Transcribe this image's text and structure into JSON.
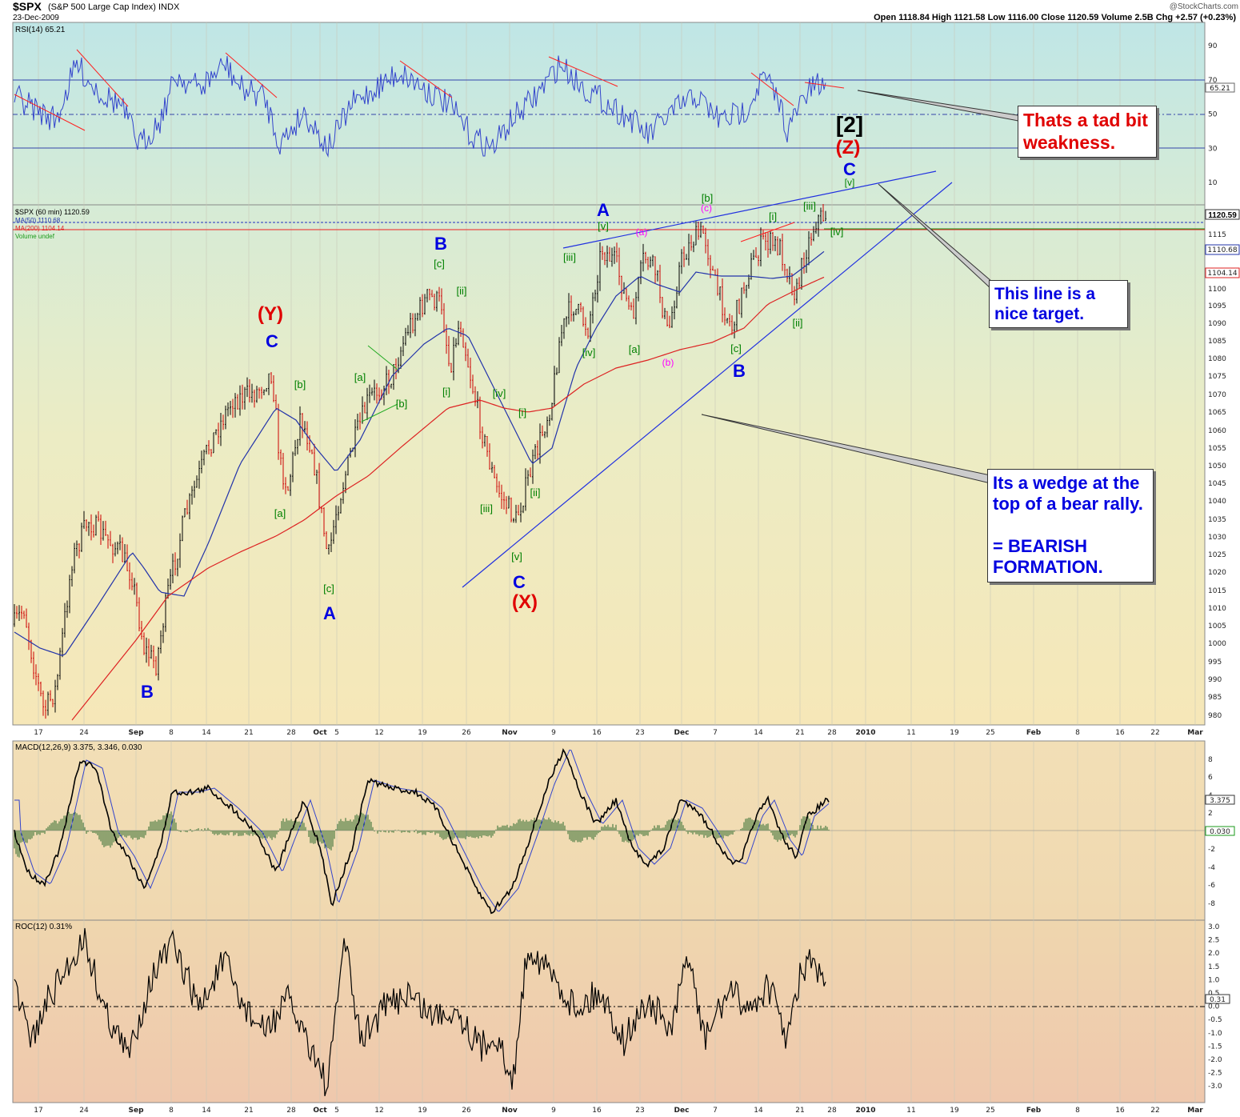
{
  "header": {
    "symbol": "$SPX",
    "name": "(S&P 500 Large Cap Index) INDX",
    "date": "23-Dec-2009",
    "watermark": "@StockCharts.com",
    "ohlc": "Open 1118.84  High 1121.58  Low 1116.00  Close 1120.59  Volume 2.5B  Chg +2.57 (+0.23%)"
  },
  "rsi_panel": {
    "label": "RSI(14) 65.21",
    "current": "65.21",
    "ticks": [
      "90",
      "70",
      "50",
      "30",
      "10"
    ]
  },
  "price_panel": {
    "legend": [
      "$SPX (60 min) 1120.59",
      "MA(50) 1110.68",
      "MA(200) 1104.14",
      "Volume undef"
    ],
    "badges": [
      "1120.59",
      "1110.68",
      "1104.14"
    ],
    "ticks": [
      "1115",
      "1110",
      "1100",
      "1095",
      "1090",
      "1085",
      "1080",
      "1075",
      "1070",
      "1065",
      "1060",
      "1055",
      "1050",
      "1045",
      "1040",
      "1035",
      "1030",
      "1025",
      "1020",
      "1015",
      "1010",
      "1005",
      "1000",
      "995",
      "990",
      "985",
      "980"
    ]
  },
  "macd_panel": {
    "label": "MACD(12,26,9) 3.375, 3.346, 0.030",
    "badges": [
      "3.375",
      "0.030"
    ],
    "ticks": [
      "8",
      "6",
      "4",
      "2",
      "-2",
      "-4",
      "-6",
      "-8"
    ]
  },
  "roc_panel": {
    "label": "ROC(12) 0.31%",
    "badge": "0.31",
    "ticks": [
      "3.0",
      "2.5",
      "2.0",
      "1.5",
      "1.0",
      "0.5",
      "0.0",
      "-0.5",
      "-1.0",
      "-1.5",
      "-2.0",
      "-2.5",
      "-3.0"
    ]
  },
  "x_axis": [
    "17",
    "24",
    "Sep",
    "8",
    "14",
    "21",
    "28",
    "Oct",
    "5",
    "12",
    "19",
    "26",
    "Nov",
    "9",
    "16",
    "23",
    "Dec",
    "7",
    "14",
    "21",
    "28",
    "2010",
    "11",
    "19",
    "25",
    "Feb",
    "8",
    "16",
    "22",
    "Mar"
  ],
  "wave_labels": [
    {
      "text": "(Y)",
      "color": "#e00000"
    },
    {
      "text": "C",
      "color": "#0000e0"
    },
    {
      "text": "B",
      "color": "#0000e0"
    },
    {
      "text": "A",
      "color": "#0000e0"
    },
    {
      "text": "B",
      "color": "#0000e0"
    },
    {
      "text": "C",
      "color": "#0000e0"
    },
    {
      "text": "(X)",
      "color": "#e00000"
    },
    {
      "text": "A",
      "color": "#0000e0"
    },
    {
      "text": "B",
      "color": "#0000e0"
    },
    {
      "text": "[2]",
      "color": "#000000"
    },
    {
      "text": "(Z)",
      "color": "#e00000"
    },
    {
      "text": "C",
      "color": "#0000e0"
    },
    {
      "text": "[b]",
      "color": "#008000"
    },
    {
      "text": "[a]",
      "color": "#008000"
    },
    {
      "text": "[c]",
      "color": "#008000"
    },
    {
      "text": "[a]",
      "color": "#008000"
    },
    {
      "text": "[b]",
      "color": "#008000"
    },
    {
      "text": "[c]",
      "color": "#008000"
    },
    {
      "text": "[ii]",
      "color": "#008000"
    },
    {
      "text": "[i]",
      "color": "#008000"
    },
    {
      "text": "[iv]",
      "color": "#008000"
    },
    {
      "text": "[i]",
      "color": "#008000"
    },
    {
      "text": "[ii]",
      "color": "#008000"
    },
    {
      "text": "[iii]",
      "color": "#008000"
    },
    {
      "text": "[v]",
      "color": "#008000"
    },
    {
      "text": "[iii]",
      "color": "#008000"
    },
    {
      "text": "[iv]",
      "color": "#008000"
    },
    {
      "text": "[v]",
      "color": "#008000"
    },
    {
      "text": "[a]",
      "color": "#008000"
    },
    {
      "text": "[b]",
      "color": "#008000"
    },
    {
      "text": "[c]",
      "color": "#008000"
    },
    {
      "text": "[i]",
      "color": "#008000"
    },
    {
      "text": "[ii]",
      "color": "#008000"
    },
    {
      "text": "[iii]",
      "color": "#008000"
    },
    {
      "text": "[iv]",
      "color": "#008000"
    },
    {
      "text": "[v]",
      "color": "#008000"
    },
    {
      "text": "(a)",
      "color": "#ff00ff"
    },
    {
      "text": "(b)",
      "color": "#ff00ff"
    },
    {
      "text": "(c)",
      "color": "#ff00ff"
    }
  ],
  "annotations": [
    {
      "text": "Thats a tad bit weakness.",
      "color": "#e00000"
    },
    {
      "text": "This line is a nice target.",
      "color": "#0000e0"
    },
    {
      "text": "Its a wedge at the top of a bear rally.",
      "color": "#0000e0"
    },
    {
      "text": "= BEARISH FORMATION.",
      "color": "#0000e0"
    }
  ],
  "chart_data": {
    "type": "line",
    "series": [
      {
        "name": "$SPX (60 min)",
        "x": [
          "17",
          "24",
          "Sep",
          "8",
          "14",
          "21",
          "28",
          "Oct",
          "5",
          "12",
          "19",
          "26",
          "Nov",
          "9",
          "16",
          "23",
          "Dec",
          "7",
          "14",
          "21",
          "28"
        ],
        "values": [
          1005,
          1030,
          995,
          1020,
          1045,
          1065,
          1055,
          1030,
          1050,
          1065,
          1090,
          1085,
          1040,
          1060,
          1100,
          1095,
          1105,
          1090,
          1105,
          1095,
          1120
        ]
      },
      {
        "name": "MA(50)",
        "values": [
          1000,
          1010,
          1020,
          1010,
          1040,
          1060,
          1062,
          1050,
          1055,
          1070,
          1085,
          1090,
          1060,
          1055,
          1085,
          1100,
          1100,
          1098,
          1100,
          1102,
          1110
        ]
      },
      {
        "name": "MA(200)",
        "values": [
          975,
          990,
          1000,
          1010,
          1025,
          1035,
          1040,
          1040,
          1048,
          1055,
          1062,
          1068,
          1068,
          1072,
          1080,
          1085,
          1088,
          1092,
          1096,
          1100,
          1104
        ]
      }
    ],
    "ylim": [
      977,
      1125
    ]
  }
}
